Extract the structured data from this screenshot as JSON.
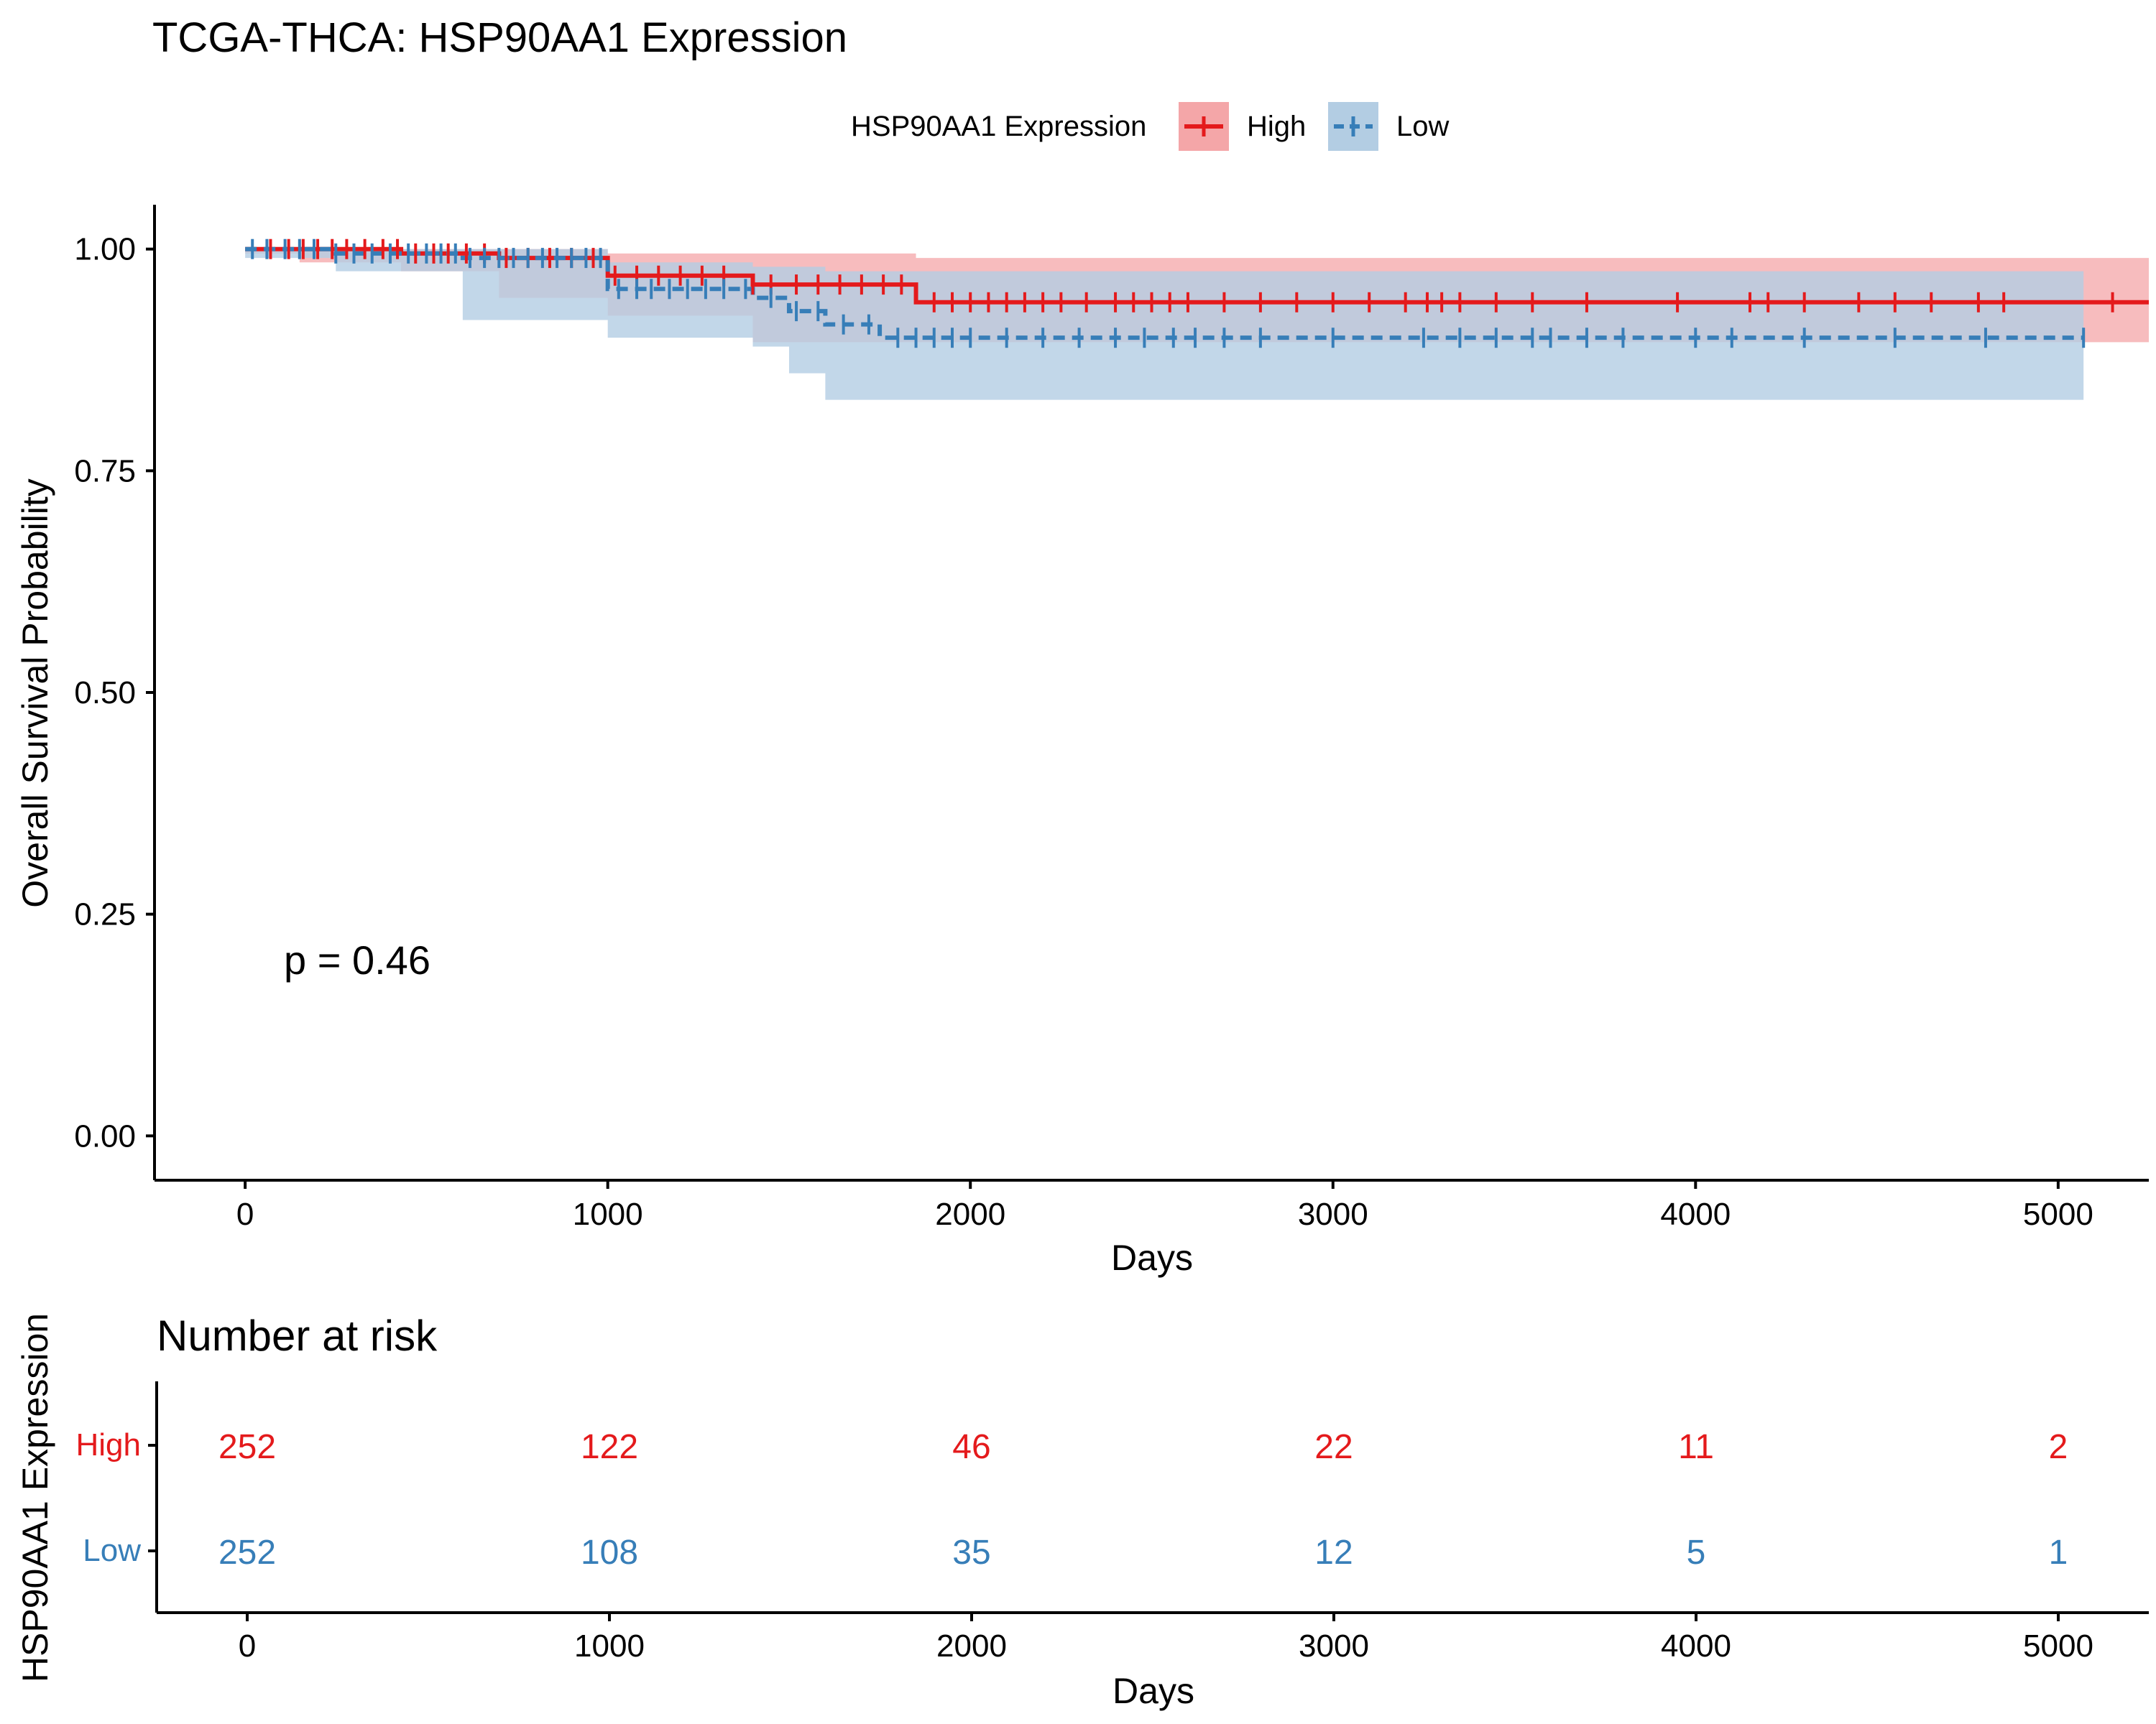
{
  "chart_data": {
    "type": "line",
    "title": "TCGA-THCA: HSP90AA1 Expression",
    "xlabel": "Days",
    "ylabel": "Overall Survival Probability",
    "xlim": [
      -250,
      5250
    ],
    "ylim": [
      -0.05,
      1.05
    ],
    "x_ticks": [
      "0",
      "1000",
      "2000",
      "3000",
      "4000",
      "5000"
    ],
    "x_tick_values": [
      0,
      1000,
      2000,
      3000,
      4000,
      5000
    ],
    "y_ticks": [
      "0.00",
      "0.25",
      "0.50",
      "0.75",
      "1.00"
    ],
    "y_tick_values": [
      0,
      0.25,
      0.5,
      0.75,
      1.0
    ],
    "grid": false,
    "legend_position": "top",
    "legend_title": "HSP90AA1 Expression",
    "pvalue_text": "p = 0.46",
    "series": [
      {
        "name": "High",
        "color": "#e41a1c",
        "fill": "#f4a6a8",
        "linestyle": "solid",
        "steps_x": [
          0,
          150,
          430,
          700,
          1000,
          1400,
          1850,
          5250
        ],
        "steps_y": [
          1.0,
          1.0,
          0.995,
          0.99,
          0.97,
          0.96,
          0.94,
          0.94
        ],
        "ci_lower": [
          1.0,
          0.995,
          0.985,
          0.975,
          0.945,
          0.925,
          0.895,
          0.895
        ],
        "ci_upper": [
          1.0,
          1.0,
          1.0,
          1.0,
          0.995,
          0.995,
          0.99,
          0.99
        ],
        "censor_x": [
          70,
          120,
          160,
          200,
          240,
          280,
          330,
          380,
          420,
          470,
          520,
          560,
          610,
          660,
          720,
          780,
          840,
          900,
          960,
          1020,
          1080,
          1140,
          1200,
          1260,
          1320,
          1400,
          1450,
          1520,
          1580,
          1640,
          1700,
          1760,
          1810,
          1900,
          1950,
          2000,
          2050,
          2100,
          2150,
          2200,
          2250,
          2320,
          2400,
          2450,
          2500,
          2550,
          2600,
          2700,
          2800,
          2900,
          3000,
          3100,
          3200,
          3260,
          3300,
          3350,
          3450,
          3550,
          3700,
          3950,
          4150,
          4200,
          4300,
          4450,
          4550,
          4650,
          4780,
          4850,
          5150
        ]
      },
      {
        "name": "Low",
        "color": "#377eb8",
        "fill": "#b3cde3",
        "linestyle": "dashed",
        "steps_x": [
          0,
          250,
          600,
          1000,
          1400,
          1500,
          1600,
          1750,
          5070
        ],
        "steps_y": [
          1.0,
          0.995,
          0.99,
          0.955,
          0.945,
          0.93,
          0.915,
          0.9,
          0.9
        ],
        "ci_lower": [
          1.0,
          0.99,
          0.975,
          0.92,
          0.9,
          0.89,
          0.86,
          0.83,
          0.83
        ],
        "ci_upper": [
          1.0,
          1.0,
          1.0,
          0.985,
          0.98,
          0.98,
          0.975,
          0.975,
          0.975
        ],
        "censor_x": [
          20,
          60,
          110,
          150,
          190,
          250,
          300,
          350,
          400,
          450,
          500,
          540,
          580,
          620,
          660,
          700,
          740,
          780,
          820,
          860,
          900,
          940,
          980,
          1030,
          1080,
          1120,
          1170,
          1220,
          1270,
          1320,
          1380,
          1450,
          1520,
          1580,
          1650,
          1720,
          1800,
          1850,
          1900,
          1950,
          2000,
          2100,
          2200,
          2300,
          2400,
          2480,
          2560,
          2620,
          2700,
          2800,
          3000,
          3250,
          3350,
          3450,
          3550,
          3600,
          3700,
          3800,
          4000,
          4100,
          4300,
          4550,
          4800,
          5070
        ]
      }
    ],
    "risk_table": {
      "title": "Number at risk",
      "ylabel": "HSP90AA1 Expression",
      "xlabel": "Days",
      "times": [
        0,
        1000,
        2000,
        3000,
        4000,
        5000
      ],
      "time_labels": [
        "0",
        "1000",
        "2000",
        "3000",
        "4000",
        "5000"
      ],
      "rows": [
        {
          "name": "High",
          "color": "#e41a1c",
          "values": [
            "252",
            "122",
            "46",
            "22",
            "11",
            "2"
          ]
        },
        {
          "name": "Low",
          "color": "#377eb8",
          "values": [
            "252",
            "108",
            "35",
            "12",
            "5",
            "1"
          ]
        }
      ]
    }
  }
}
